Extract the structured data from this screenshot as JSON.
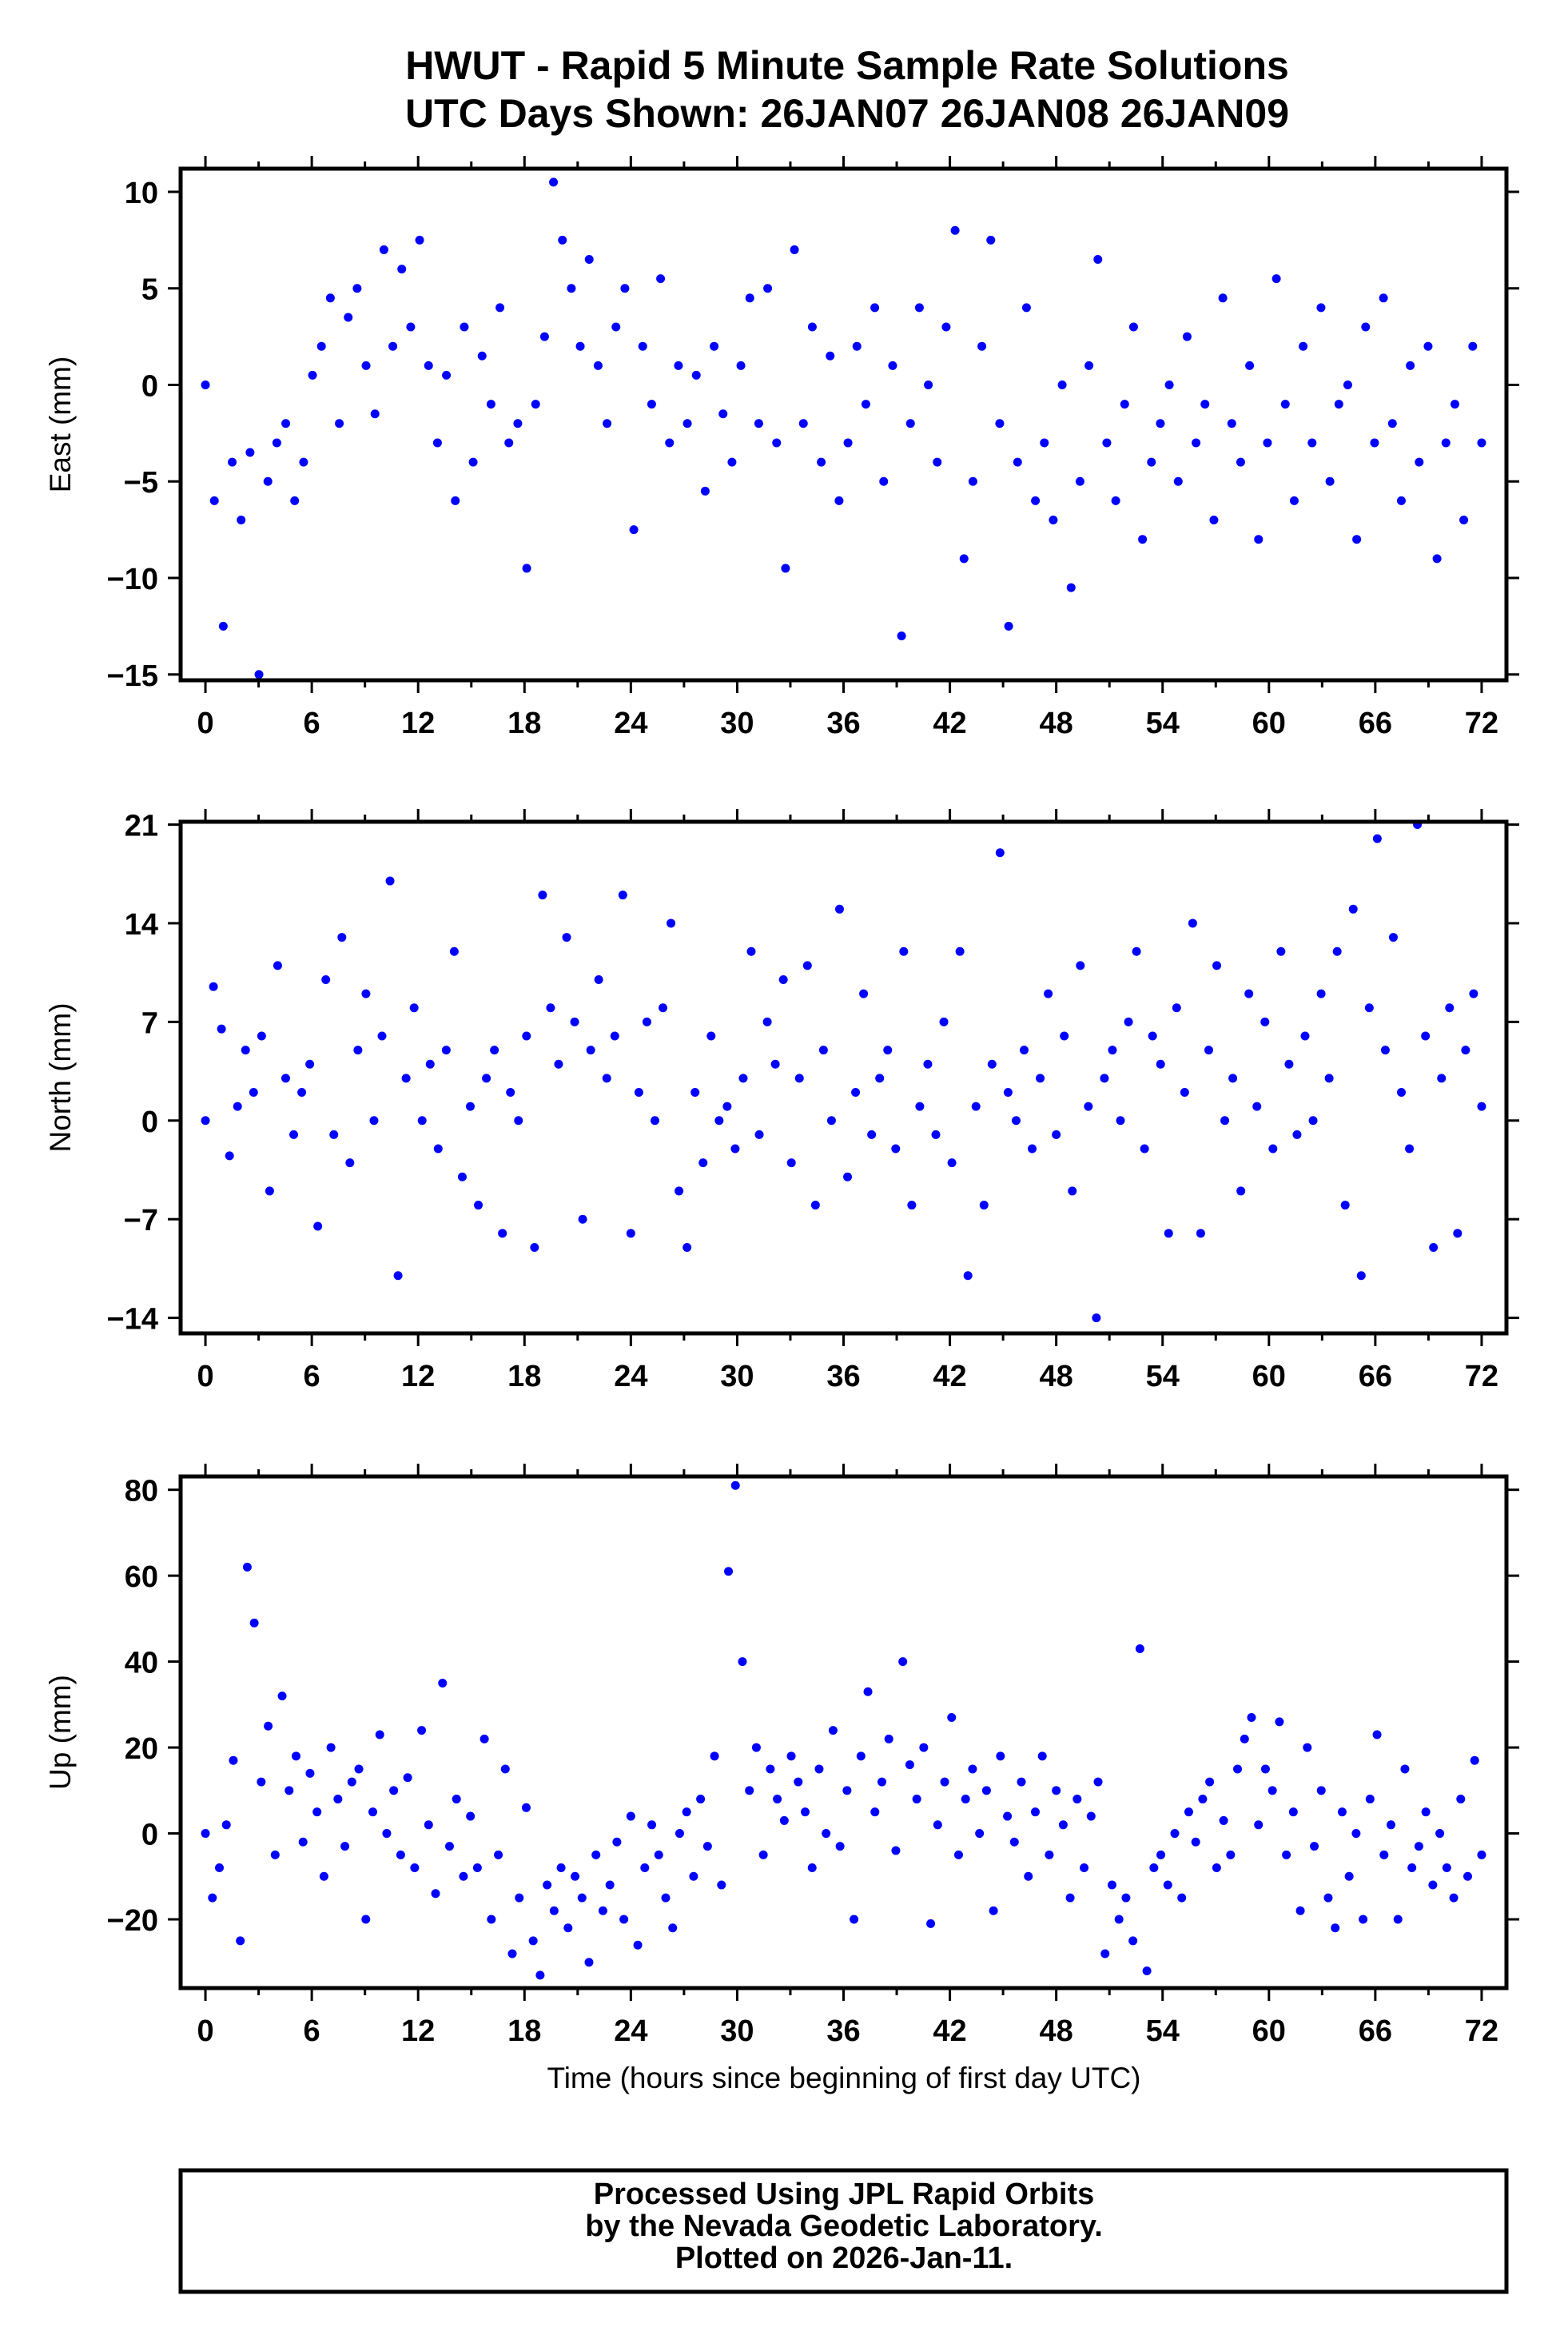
{
  "title": {
    "line1": "HWUT - Rapid 5 Minute Sample Rate Solutions",
    "line2": "UTC Days Shown:  26JAN07 26JAN08 26JAN09"
  },
  "footer": {
    "line1": "Processed Using JPL Rapid Orbits",
    "line2": "by the Nevada Geodetic Laboratory.",
    "line3": "Plotted on 2026-Jan-11."
  },
  "chart_data": [
    {
      "type": "scatter",
      "title": "East",
      "xlabel": "",
      "ylabel": "East (mm)",
      "xlim": [
        -1.4,
        73.4
      ],
      "ylim": [
        -15.3,
        11.2
      ],
      "xticks": [
        0,
        6,
        12,
        18,
        24,
        30,
        36,
        42,
        48,
        54,
        60,
        66,
        72
      ],
      "yticks": [
        -15,
        -10,
        -5,
        0,
        5,
        10
      ],
      "x_start": 0,
      "x_end": 72,
      "color": "#0000ff",
      "values": [
        0,
        -6,
        -12.5,
        -4,
        -7,
        -3.5,
        -15,
        -5,
        -3,
        -2,
        -6,
        -4,
        0.5,
        2,
        4.5,
        -2,
        3.5,
        5,
        1,
        -1.5,
        7,
        2,
        6,
        3,
        7.5,
        1,
        -3,
        0.5,
        -6,
        3,
        -4,
        1.5,
        -1,
        4,
        -3,
        -2,
        -9.5,
        -1,
        2.5,
        10.5,
        7.5,
        5,
        2,
        6.5,
        1,
        -2,
        3,
        5,
        -7.5,
        2,
        -1,
        5.5,
        -3,
        1,
        -2,
        0.5,
        -5.5,
        2,
        -1.5,
        -4,
        1,
        4.5,
        -2,
        5,
        -3,
        -9.5,
        7,
        -2,
        3,
        -4,
        1.5,
        -6,
        -3,
        2,
        -1,
        4,
        -5,
        1,
        -13,
        -2,
        4,
        0,
        -4,
        3,
        8,
        -9,
        -5,
        2,
        7.5,
        -2,
        -12.5,
        -4,
        4,
        -6,
        -3,
        -7,
        0,
        -10.5,
        -5,
        1,
        6.5,
        -3,
        -6,
        -1,
        3,
        -8,
        -4,
        -2,
        0,
        -5,
        2.5,
        -3,
        -1,
        -7,
        4.5,
        -2,
        -4,
        1,
        -8,
        -3,
        5.5,
        -1,
        -6,
        2,
        -3,
        4,
        -5,
        -1,
        0,
        -8,
        3,
        -3,
        4.5,
        -2,
        -6,
        1,
        -4,
        2,
        -9,
        -3,
        -1,
        -7,
        2,
        -3
      ]
    },
    {
      "type": "scatter",
      "title": "North",
      "xlabel": "",
      "ylabel": "North (mm)",
      "xlim": [
        -1.4,
        73.4
      ],
      "ylim": [
        -15.1,
        21.2
      ],
      "xticks": [
        0,
        6,
        12,
        18,
        24,
        30,
        36,
        42,
        48,
        54,
        60,
        66,
        72
      ],
      "yticks": [
        -14,
        -7,
        0,
        7,
        14,
        21
      ],
      "x_start": 0,
      "x_end": 72,
      "color": "#0000ff",
      "values": [
        0,
        9.5,
        6.5,
        -2.5,
        1,
        5,
        2,
        6,
        -5,
        11,
        3,
        -1,
        2,
        4,
        -7.5,
        10,
        -1,
        13,
        -3,
        5,
        9,
        0,
        6,
        17,
        -11,
        3,
        8,
        0,
        4,
        -2,
        5,
        12,
        -4,
        1,
        -6,
        3,
        5,
        -8,
        2,
        0,
        6,
        -9,
        16,
        8,
        4,
        13,
        7,
        -7,
        5,
        10,
        3,
        6,
        16,
        -8,
        2,
        7,
        0,
        8,
        14,
        -5,
        -9,
        2,
        -3,
        6,
        0,
        1,
        -2,
        3,
        12,
        -1,
        7,
        4,
        10,
        -3,
        3,
        11,
        -6,
        5,
        0,
        15,
        -4,
        2,
        9,
        -1,
        3,
        5,
        -2,
        12,
        -6,
        1,
        4,
        -1,
        7,
        -3,
        12,
        -11,
        1,
        -6,
        4,
        19,
        2,
        0,
        5,
        -2,
        3,
        9,
        -1,
        6,
        -5,
        11,
        1,
        -14,
        3,
        5,
        0,
        7,
        12,
        -2,
        6,
        4,
        -8,
        8,
        2,
        14,
        -8,
        5,
        11,
        0,
        3,
        -5,
        9,
        1,
        7,
        -2,
        12,
        4,
        -1,
        6,
        0,
        9,
        3,
        12,
        -6,
        15,
        -11,
        8,
        20,
        5,
        13,
        2,
        -2,
        21,
        6,
        -9,
        3,
        8,
        -8,
        5,
        9,
        1
      ]
    },
    {
      "type": "scatter",
      "title": "Up",
      "xlabel": "Time (hours since beginning of first day UTC)",
      "ylabel": "Up (mm)",
      "xlim": [
        -1.4,
        73.4
      ],
      "ylim": [
        -36,
        83.1
      ],
      "xticks": [
        0,
        6,
        12,
        18,
        24,
        30,
        36,
        42,
        48,
        54,
        60,
        66,
        72
      ],
      "yticks": [
        -20,
        0,
        20,
        40,
        60,
        80
      ],
      "x_start": 0,
      "x_end": 72,
      "color": "#0000ff",
      "values": [
        0,
        -15,
        -8,
        2,
        17,
        -25,
        62,
        49,
        12,
        25,
        -5,
        32,
        10,
        18,
        -2,
        14,
        5,
        -10,
        20,
        8,
        -3,
        12,
        15,
        -20,
        5,
        23,
        0,
        10,
        -5,
        13,
        -8,
        24,
        2,
        -14,
        35,
        -3,
        8,
        -10,
        4,
        -8,
        22,
        -20,
        -5,
        15,
        -28,
        -15,
        6,
        -25,
        -33,
        -12,
        -18,
        -8,
        -22,
        -10,
        -15,
        -30,
        -5,
        -18,
        -12,
        -2,
        -20,
        4,
        -26,
        -8,
        2,
        -5,
        -15,
        -22,
        0,
        5,
        -10,
        8,
        -3,
        18,
        -12,
        61,
        81,
        40,
        10,
        20,
        -5,
        15,
        8,
        3,
        18,
        12,
        5,
        -8,
        15,
        0,
        24,
        -3,
        10,
        -20,
        18,
        33,
        5,
        12,
        22,
        -4,
        40,
        16,
        8,
        20,
        -21,
        2,
        12,
        27,
        -5,
        8,
        15,
        0,
        10,
        -18,
        18,
        4,
        -2,
        12,
        -10,
        5,
        18,
        -5,
        10,
        2,
        -15,
        8,
        -8,
        4,
        12,
        -28,
        -12,
        -20,
        -15,
        -25,
        43,
        -32,
        -8,
        -5,
        -12,
        0,
        -15,
        5,
        -2,
        8,
        12,
        -8,
        3,
        -5,
        15,
        22,
        27,
        2,
        15,
        10,
        26,
        -5,
        5,
        -18,
        20,
        -3,
        10,
        -15,
        -22,
        5,
        -10,
        0,
        -20,
        8,
        23,
        -5,
        2,
        -20,
        15,
        -8,
        -3,
        5,
        -12,
        0,
        -8,
        -15,
        8,
        -10,
        17,
        -5
      ]
    }
  ]
}
